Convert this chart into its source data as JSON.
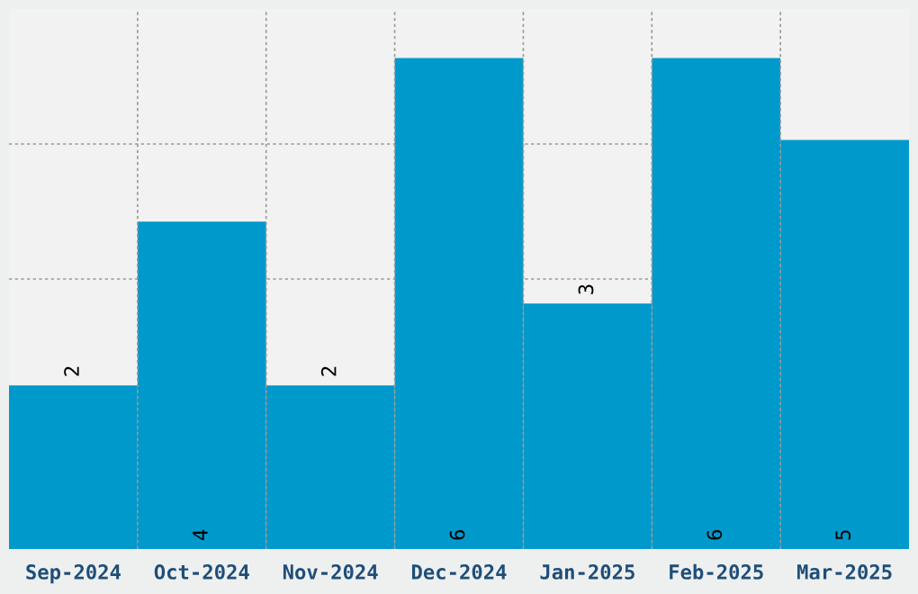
{
  "chart_data": {
    "type": "bar",
    "categories": [
      "Sep-2024",
      "Oct-2024",
      "Nov-2024",
      "Dec-2024",
      "Jan-2025",
      "Feb-2025",
      "Mar-2025"
    ],
    "values": [
      2,
      4,
      2,
      6,
      3,
      6,
      5
    ],
    "color": "#0099cc",
    "data_labels": true,
    "ylim": [
      0,
      6.6
    ],
    "yticks": [
      {
        "value": 1.65,
        "label": null
      },
      {
        "value": 3.3,
        "label": null
      },
      {
        "value": 4.95,
        "label": null
      }
    ],
    "grid": true,
    "tick_labels": "x"
  }
}
